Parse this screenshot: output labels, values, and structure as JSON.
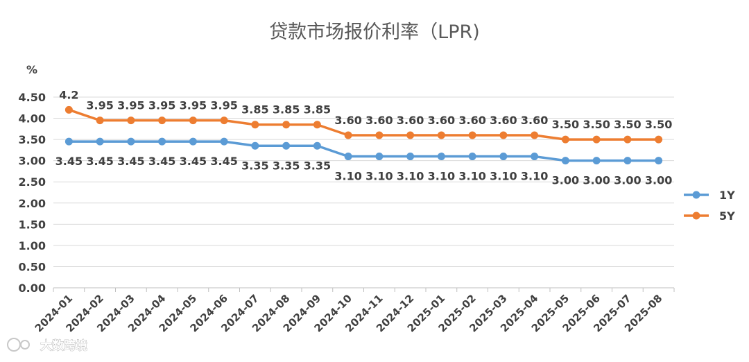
{
  "chart_data": {
    "type": "line",
    "title": "贷款市场报价利率（LPR)",
    "ylabel": "%",
    "xlabel": "",
    "ylim": [
      0,
      4.5
    ],
    "yticks": [
      "0.00",
      "0.50",
      "1.00",
      "1.50",
      "2.00",
      "2.50",
      "3.00",
      "3.50",
      "4.00",
      "4.50"
    ],
    "grid": true,
    "legend_position": "right",
    "categories": [
      "2024-01",
      "2024-02",
      "2024-03",
      "2024-04",
      "2024-05",
      "2024-06",
      "2024-07",
      "2024-08",
      "2024-09",
      "2024-10",
      "2024-11",
      "2024-12",
      "2025-01",
      "2025-02",
      "2025-03",
      "2025-04",
      "2025-05",
      "2025-06",
      "2025-07",
      "2025-08"
    ],
    "series": [
      {
        "name": "1Y",
        "color": "#5B9BD5",
        "values": [
          3.45,
          3.45,
          3.45,
          3.45,
          3.45,
          3.45,
          3.35,
          3.35,
          3.35,
          3.1,
          3.1,
          3.1,
          3.1,
          3.1,
          3.1,
          3.1,
          3.0,
          3.0,
          3.0,
          3.0
        ],
        "labels": [
          "3.45",
          "3.45",
          "3.45",
          "3.45",
          "3.45",
          "3.45",
          "3.35",
          "3.35",
          "3.35",
          "3.10",
          "3.10",
          "3.10",
          "3.10",
          "3.10",
          "3.10",
          "3.10",
          "3.00",
          "3.00",
          "3.00",
          "3.00"
        ],
        "label_position": "below"
      },
      {
        "name": "5Y",
        "color": "#ED7D31",
        "values": [
          4.2,
          3.95,
          3.95,
          3.95,
          3.95,
          3.95,
          3.85,
          3.85,
          3.85,
          3.6,
          3.6,
          3.6,
          3.6,
          3.6,
          3.6,
          3.6,
          3.5,
          3.5,
          3.5,
          3.5
        ],
        "labels": [
          "4.2",
          "3.95",
          "3.95",
          "3.95",
          "3.95",
          "3.95",
          "3.85",
          "3.85",
          "3.85",
          "3.60",
          "3.60",
          "3.60",
          "3.60",
          "3.60",
          "3.60",
          "3.60",
          "3.50",
          "3.50",
          "3.50",
          "3.50"
        ],
        "label_position": "above"
      }
    ]
  },
  "watermark": {
    "text": "大数跨境"
  }
}
